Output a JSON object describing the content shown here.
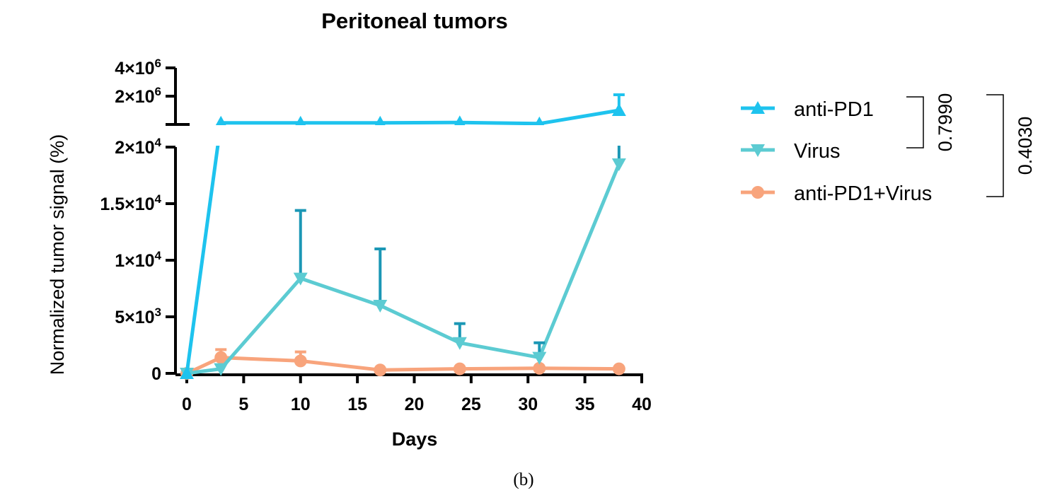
{
  "chart_data": {
    "type": "line",
    "title": "Peritoneal tumors",
    "xlabel": "Days",
    "ylabel": "Normalized tumor signal (%)",
    "caption": "(b)",
    "xlim": [
      0,
      40
    ],
    "x_ticks": [
      "0",
      "5",
      "10",
      "15",
      "20",
      "25",
      "30",
      "35",
      "40"
    ],
    "y_axis_broken": true,
    "ylim_lower": [
      0,
      20000
    ],
    "ylim_upper": [
      0,
      4000000
    ],
    "y_ticks_lower": [
      {
        "value": 0,
        "base": "0",
        "exp": ""
      },
      {
        "value": 5000,
        "base": "5×10",
        "exp": "3"
      },
      {
        "value": 10000,
        "base": "1×10",
        "exp": "4"
      },
      {
        "value": 15000,
        "base": "1.5×10",
        "exp": "4"
      },
      {
        "value": 20000,
        "base": "2×10",
        "exp": "4"
      }
    ],
    "y_ticks_upper": [
      {
        "value": 2000000,
        "base": "2×10",
        "exp": "6"
      },
      {
        "value": 4000000,
        "base": "4×10",
        "exp": "6"
      }
    ],
    "x": [
      0,
      3,
      10,
      17,
      24,
      31,
      38
    ],
    "series": [
      {
        "name": "anti-PD1",
        "color": "#1ec3ee",
        "errcolor": "#1ec3ee",
        "marker": "triangle-up",
        "values": [
          0,
          110000,
          110000,
          110000,
          140000,
          60000,
          1000000
        ],
        "err_upper": [
          null,
          null,
          null,
          null,
          null,
          null,
          2100000
        ]
      },
      {
        "name": "Virus",
        "color": "#5ccbd2",
        "errcolor": "#1b97b5",
        "marker": "triangle-down",
        "values": [
          0,
          400,
          8400,
          6000,
          2700,
          1400,
          18500
        ],
        "err_upper": [
          null,
          null,
          14400,
          11000,
          4400,
          2700,
          21000
        ]
      },
      {
        "name": "anti-PD1+Virus",
        "color": "#f8a47c",
        "errcolor": "#f8a47c",
        "marker": "circle",
        "values": [
          0,
          1400,
          1100,
          300,
          400,
          450,
          400
        ],
        "err_upper": [
          null,
          2100,
          1900,
          null,
          null,
          null,
          null
        ]
      }
    ],
    "legend_placement": "right",
    "comparisons": [
      {
        "groups": [
          "anti-PD1",
          "Virus"
        ],
        "p": "0.7990"
      },
      {
        "groups": [
          "anti-PD1",
          "anti-PD1+Virus"
        ],
        "p": "0.4030"
      }
    ]
  }
}
